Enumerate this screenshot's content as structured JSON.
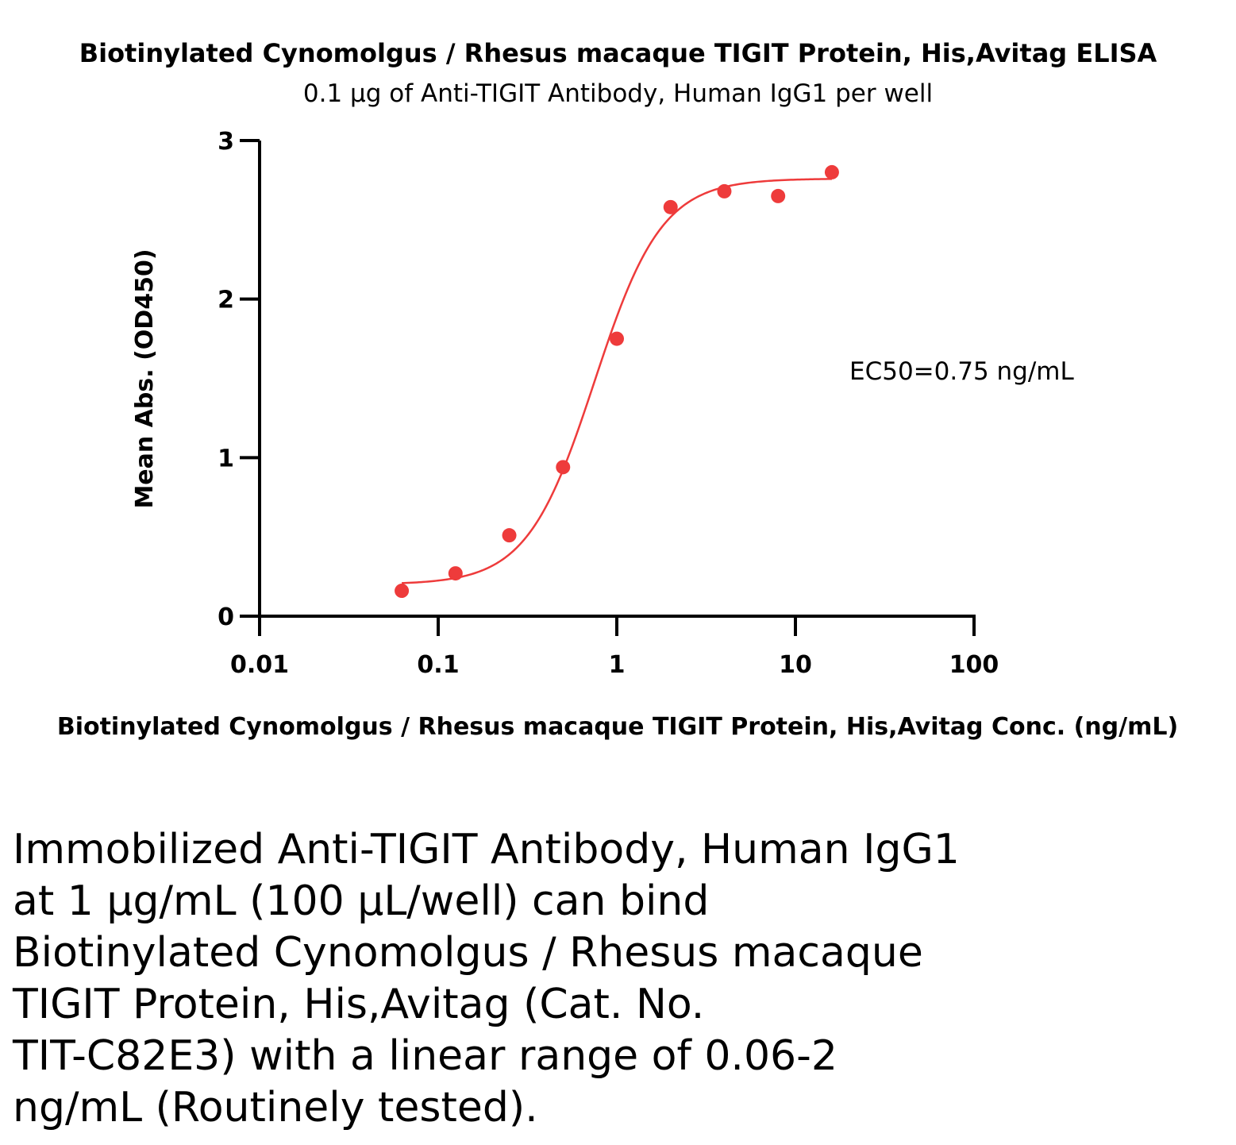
{
  "chart_data": {
    "type": "scatter",
    "title": "Biotinylated Cynomolgus / Rhesus macaque TIGIT Protein, His,Avitag ELISA",
    "subtitle": "0.1 µg of Anti-TIGIT Antibody, Human IgG1 per well",
    "xlabel": "Biotinylated Cynomolgus / Rhesus macaque TIGIT Protein, His,Avitag Conc. (ng/mL)",
    "ylabel": "Mean Abs. (OD450)",
    "xscale": "log",
    "xlim": [
      0.01,
      100
    ],
    "ylim": [
      0,
      3
    ],
    "xticks": [
      "0.01",
      "0.1",
      "1",
      "10",
      "100"
    ],
    "xtick_values": [
      0.01,
      0.1,
      1,
      10,
      100
    ],
    "yticks": [
      "0",
      "1",
      "2",
      "3"
    ],
    "ytick_values": [
      0,
      1,
      2,
      3
    ],
    "grid": false,
    "series": [
      {
        "color": "#ee3b3b",
        "x": [
          0.0625,
          0.125,
          0.25,
          0.5,
          1,
          2,
          4,
          8,
          16
        ],
        "y": [
          0.16,
          0.27,
          0.51,
          0.94,
          1.75,
          2.58,
          2.68,
          2.65,
          2.8
        ],
        "fit": {
          "model": "4PL",
          "bottom": 0.2,
          "top": 2.76,
          "ec50": 0.75,
          "hill": 2.3
        }
      }
    ],
    "annotations": [
      {
        "text": "EC50=0.75 ng/mL"
      }
    ]
  },
  "caption_lines": [
    "Immobilized Anti-TIGIT Antibody, Human IgG1",
    "at 1 µg/mL (100 µL/well) can bind",
    "Biotinylated Cynomolgus / Rhesus macaque",
    "TIGIT Protein, His,Avitag (Cat. No.",
    "TIT-C82E3) with a linear range of 0.06-2",
    "ng/mL (Routinely tested)."
  ]
}
